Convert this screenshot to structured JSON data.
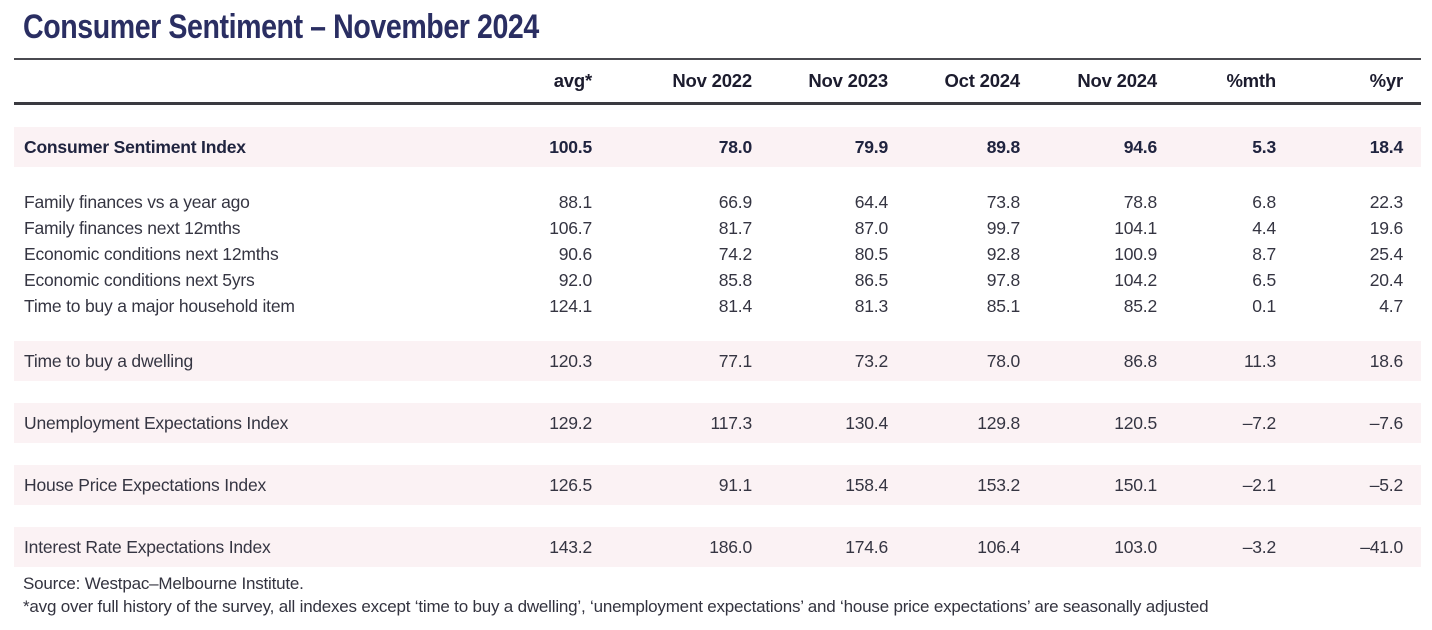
{
  "title": "Consumer Sentiment – November 2024",
  "table": {
    "columns": [
      "",
      "avg*",
      "Nov 2022",
      "Nov 2023",
      "Oct 2024",
      "Nov 2024",
      "%mth",
      "%yr"
    ],
    "rows": [
      {
        "label": "Consumer Sentiment Index",
        "values": [
          "100.5",
          "78.0",
          "79.9",
          "89.8",
          "94.6",
          "5.3",
          "18.4"
        ],
        "highlight": true,
        "bold": true,
        "section_start": true
      },
      {
        "label": "Family finances vs a year ago",
        "values": [
          "88.1",
          "66.9",
          "64.4",
          "73.8",
          "78.8",
          "6.8",
          "22.3"
        ],
        "highlight": false,
        "bold": false,
        "section_start": true
      },
      {
        "label": "Family finances next 12mths",
        "values": [
          "106.7",
          "81.7",
          "87.0",
          "99.7",
          "104.1",
          "4.4",
          "19.6"
        ],
        "highlight": false,
        "bold": false,
        "section_start": false
      },
      {
        "label": "Economic conditions next 12mths",
        "values": [
          "90.6",
          "74.2",
          "80.5",
          "92.8",
          "100.9",
          "8.7",
          "25.4"
        ],
        "highlight": false,
        "bold": false,
        "section_start": false
      },
      {
        "label": "Economic conditions next 5yrs",
        "values": [
          "92.0",
          "85.8",
          "86.5",
          "97.8",
          "104.2",
          "6.5",
          "20.4"
        ],
        "highlight": false,
        "bold": false,
        "section_start": false
      },
      {
        "label": "Time to buy a major household item",
        "values": [
          "124.1",
          "81.4",
          "81.3",
          "85.1",
          "85.2",
          "0.1",
          "4.7"
        ],
        "highlight": false,
        "bold": false,
        "section_start": false
      },
      {
        "label": "Time to buy a dwelling",
        "values": [
          "120.3",
          "77.1",
          "73.2",
          "78.0",
          "86.8",
          "11.3",
          "18.6"
        ],
        "highlight": true,
        "bold": false,
        "section_start": true
      },
      {
        "label": "Unemployment Expectations Index",
        "values": [
          "129.2",
          "117.3",
          "130.4",
          "129.8",
          "120.5",
          "–7.2",
          "–7.6"
        ],
        "highlight": true,
        "bold": false,
        "section_start": true
      },
      {
        "label": "House Price Expectations Index",
        "values": [
          "126.5",
          "91.1",
          "158.4",
          "153.2",
          "150.1",
          "–2.1",
          "–5.2"
        ],
        "highlight": true,
        "bold": false,
        "section_start": true
      },
      {
        "label": "Interest Rate Expectations Index",
        "values": [
          "143.2",
          "186.0",
          "174.6",
          "106.4",
          "103.0",
          "–3.2",
          "–41.0"
        ],
        "highlight": true,
        "bold": false,
        "section_start": true
      }
    ]
  },
  "footer": {
    "source": "Source: Westpac–Melbourne Institute.",
    "note": "*avg over full history of the survey, all indexes except ‘time to buy a dwelling’, ‘unemployment expectations’ and ‘house price expectations’ are seasonally adjusted"
  },
  "colors": {
    "title_navy": "#2a2e62",
    "highlight_pink": "#fbf2f4",
    "rule_dark": "#3a3a40"
  }
}
